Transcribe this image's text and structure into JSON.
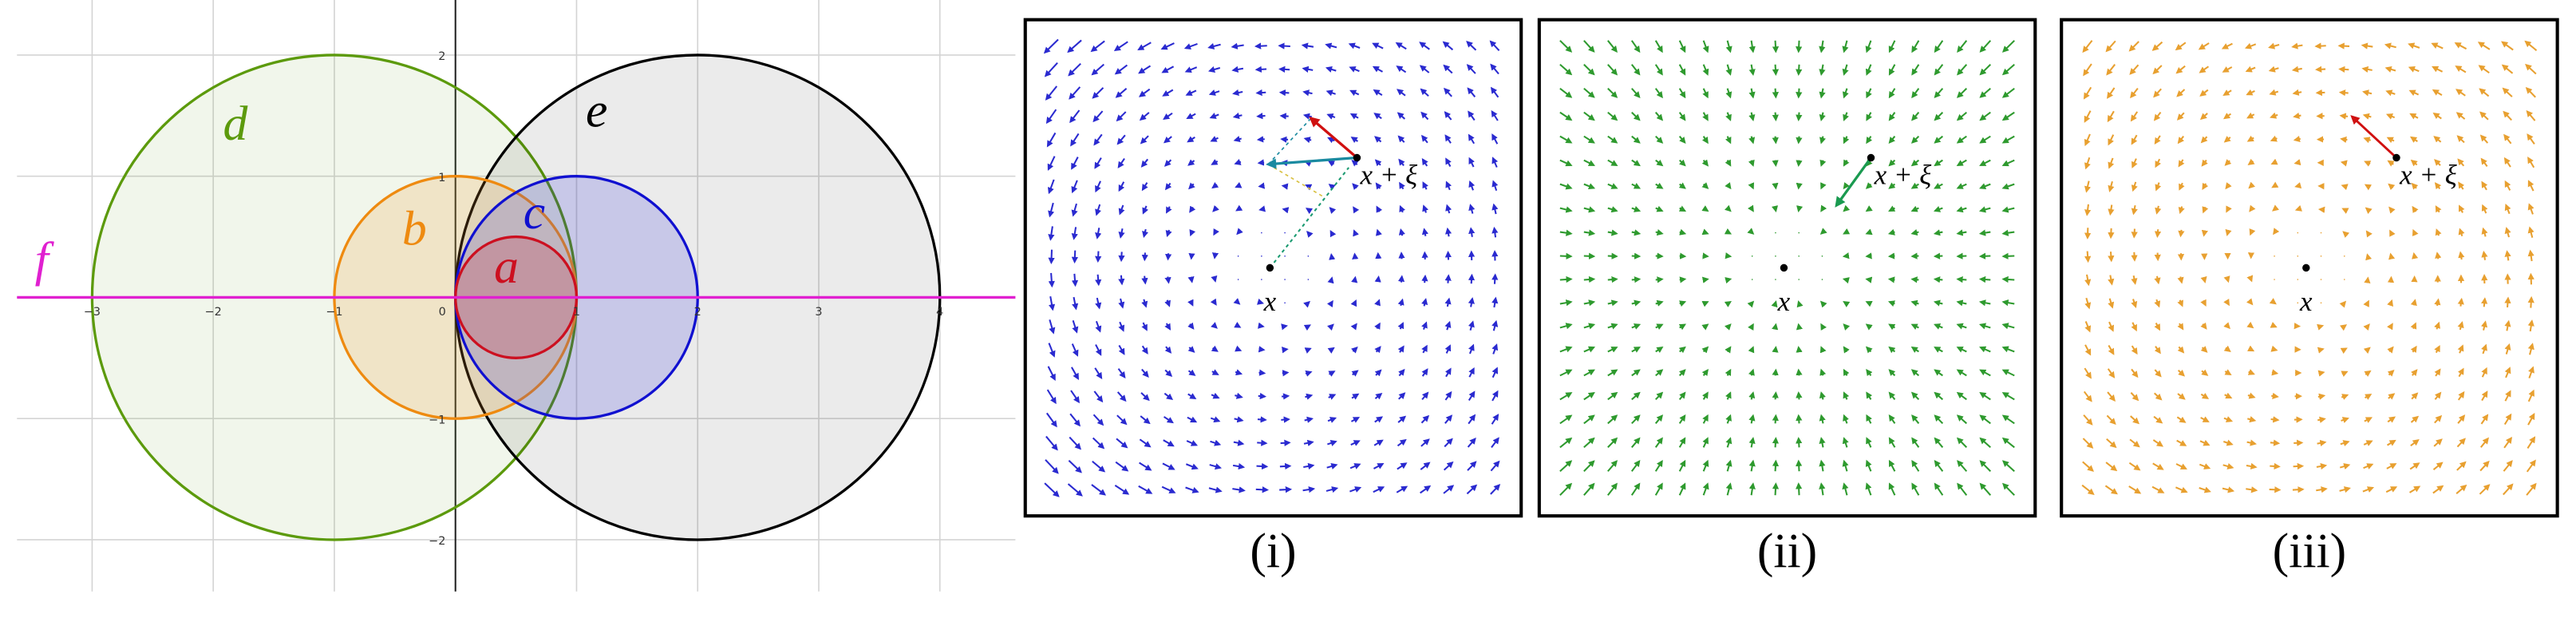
{
  "left_plot": {
    "x_tick_labels": [
      "−3",
      "−2",
      "−1",
      "0",
      "1",
      "2",
      "3",
      "4"
    ],
    "y_tick_labels": [
      "2",
      "1",
      "−1",
      "−2"
    ],
    "shape_labels": [
      "a",
      "b",
      "c",
      "d",
      "e",
      "f"
    ]
  },
  "panels": [
    {
      "caption": "(i)",
      "point_label": "x",
      "shifted_label": "x + ξ"
    },
    {
      "caption": "(ii)",
      "point_label": "x",
      "shifted_label": "x + ξ"
    },
    {
      "caption": "(iii)",
      "point_label": "x",
      "shifted_label": "x + ξ"
    }
  ]
}
